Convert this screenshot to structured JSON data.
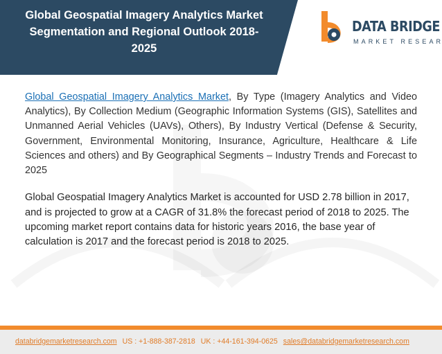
{
  "header": {
    "title_line1": "Global Geospatial Imagery Analytics Market",
    "title_line2": "Segmentation and Regional Outlook 2018-",
    "title_line3": "2025"
  },
  "logo": {
    "name": "DATA BRIDGE",
    "tagline": "MARKET RESEARCH",
    "mark_icon": "data-bridge-logo-icon",
    "colors": {
      "orange": "#f28b2c",
      "navy": "#2c4a63"
    }
  },
  "content": {
    "link_text": "Global Geospatial Imagery Analytics Market",
    "paragraph_one_rest": ", By Type (Imagery Analytics and Video Analytics), By Collection Medium (Geographic Information Systems (GIS), Satellites and Unmanned Aerial Vehicles (UAVs), Others), By Industry Vertical (Defense & Security, Government, Environmental Monitoring, Insurance, Agriculture, Healthcare & Life Sciences and others) and By Geographical Segments – Industry Trends and Forecast to 2025",
    "paragraph_two": "Global Geospatial Imagery Analytics Market is accounted for USD 2.78 billion in 2017, and is projected to grow at a CAGR of 31.8% the forecast period of 2018 to 2025. The upcoming market report contains data for historic years 2016, the base year of calculation is 2017 and the forecast period is 2018 to 2025."
  },
  "footer": {
    "website": "databridgemarketresearch.com",
    "us_phone": "US : +1-888-387-2818",
    "uk_phone": "UK : +44-161-394-0625",
    "email": "sales@databridgemarketresearch.com"
  },
  "colors": {
    "header_bg": "#2c4a63",
    "link": "#1a6fb5",
    "footer_accent": "#f28b2c",
    "footer_bg": "#ececec"
  }
}
